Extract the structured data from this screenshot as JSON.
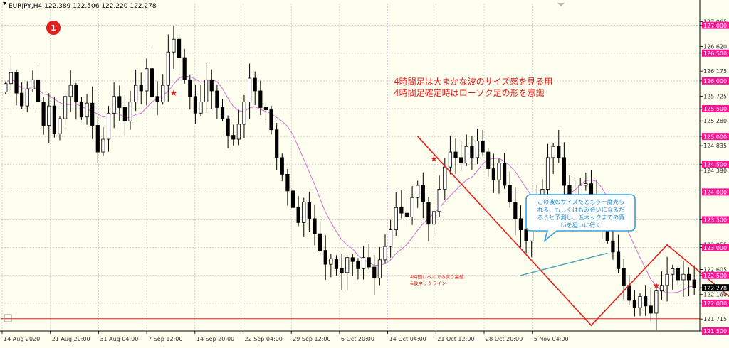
{
  "window": {
    "symbol_line": "EURJPY,H4  122.389 122.506 122.220 122.278",
    "marker_number": "1"
  },
  "colors": {
    "background": "#fffff0",
    "grid": "#c9b9c9",
    "candle": "#000000",
    "ma_line": "#d26ed2",
    "highlight_label": "#ff1493",
    "annotation_red": "#e0201c",
    "bubble_border": "#3aa0d8",
    "bubble_text": "#1b8bd2",
    "trend_line": "#4aa0b4"
  },
  "chart_data": {
    "type": "candlestick",
    "instrument": "EURJPY",
    "timeframe": "H4",
    "ylim": [
      121.5,
      127.2
    ],
    "x_tick_labels": [
      "14 Aug 2020",
      "21 Aug 20:00",
      "31 Aug 04:00",
      "7 Sep 12:00",
      "14 Sep 20:00",
      "22 Sep 04:00",
      "29 Sep 12:00",
      "6 Oct 20:00",
      "14 Oct 04:00",
      "21 Oct 12:00",
      "28 Oct 20:00",
      "5 Nov 04:00"
    ],
    "y_ticks": [
      {
        "value": 127.065,
        "label": "127.065",
        "highlight": false
      },
      {
        "value": 127.0,
        "label": "127.000",
        "highlight": true
      },
      {
        "value": 126.62,
        "label": "126.620",
        "highlight": false
      },
      {
        "value": 126.5,
        "label": "126.500",
        "highlight": true
      },
      {
        "value": 126.175,
        "label": "126.175",
        "highlight": false
      },
      {
        "value": 126.0,
        "label": "126.000",
        "highlight": true
      },
      {
        "value": 125.725,
        "label": "125.725",
        "highlight": false
      },
      {
        "value": 125.5,
        "label": "125.500",
        "highlight": true
      },
      {
        "value": 125.28,
        "label": "125.280",
        "highlight": false
      },
      {
        "value": 125.0,
        "label": "125.000",
        "highlight": true
      },
      {
        "value": 124.835,
        "label": "124.835",
        "highlight": false
      },
      {
        "value": 124.5,
        "label": "124.500",
        "highlight": true
      },
      {
        "value": 124.39,
        "label": "124.390",
        "highlight": false
      },
      {
        "value": 124.0,
        "label": "124.000",
        "highlight": true
      },
      {
        "value": 123.5,
        "label": "123.500",
        "highlight": true
      },
      {
        "value": 123.055,
        "label": "123.055",
        "highlight": false
      },
      {
        "value": 123.0,
        "label": "123.000",
        "highlight": true
      },
      {
        "value": 122.605,
        "label": "122.605",
        "highlight": false
      },
      {
        "value": 122.5,
        "label": "122.500",
        "highlight": true
      },
      {
        "value": 122.278,
        "label": "122.278",
        "highlight": false,
        "current": true
      },
      {
        "value": 122.16,
        "label": "122.160",
        "highlight": false
      },
      {
        "value": 122.0,
        "label": "122.000",
        "highlight": true
      },
      {
        "value": 121.715,
        "label": "121.715",
        "highlight": false
      },
      {
        "value": 121.5,
        "label": "121.500",
        "highlight": true
      }
    ],
    "closes": [
      125.95,
      126.15,
      125.78,
      125.55,
      125.85,
      126.02,
      125.62,
      125.2,
      125.55,
      125.05,
      125.32,
      125.72,
      125.92,
      125.62,
      125.35,
      125.6,
      125.2,
      124.72,
      124.95,
      125.42,
      125.72,
      125.52,
      125.28,
      125.62,
      125.92,
      125.82,
      126.22,
      125.72,
      125.62,
      125.92,
      126.52,
      126.75,
      126.42,
      126.02,
      125.72,
      125.42,
      125.62,
      126.02,
      125.82,
      125.52,
      125.32,
      125.02,
      124.95,
      125.22,
      125.62,
      126.05,
      125.82,
      125.52,
      125.48,
      125.12,
      124.62,
      124.32,
      124.02,
      123.72,
      123.45,
      123.82,
      123.52,
      123.25,
      122.95,
      122.7,
      122.8,
      122.62,
      122.55,
      122.82,
      122.75,
      122.62,
      122.82,
      122.65,
      122.45,
      122.78,
      123.02,
      123.32,
      123.72,
      123.62,
      123.55,
      123.9,
      124.12,
      123.82,
      123.42,
      123.65,
      124.05,
      124.45,
      124.72,
      124.62,
      124.52,
      124.82,
      124.62,
      124.92,
      124.72,
      124.42,
      124.22,
      124.52,
      124.12,
      123.82,
      123.52,
      123.32,
      123.12,
      123.42,
      123.82,
      124.05,
      124.62,
      124.82,
      124.62,
      124.12,
      123.92,
      123.82,
      124.12,
      124.15,
      123.92,
      123.82,
      123.42,
      123.12,
      122.92,
      122.62,
      122.32,
      122.05,
      121.92,
      122.12,
      121.95,
      121.82,
      122.22,
      122.32,
      122.52,
      122.62,
      122.42,
      122.52,
      122.42,
      122.278
    ],
    "markers": [
      {
        "type": "star",
        "index": 31,
        "price": 125.78
      },
      {
        "type": "star",
        "index": 79,
        "price": 124.6
      },
      {
        "type": "star",
        "index": 120,
        "price": 122.32
      }
    ],
    "horizontal_line": {
      "price": 121.72,
      "color": "#e0201c"
    },
    "wave_zigzag": [
      {
        "index": 76,
        "price": 125.0
      },
      {
        "index": 108,
        "price": 121.6
      },
      {
        "index": 122,
        "price": 123.05
      },
      {
        "index": 138,
        "price": 121.75
      }
    ],
    "trend_line": [
      {
        "index": 95,
        "price": 122.5
      },
      {
        "index": 111,
        "price": 122.9
      }
    ]
  },
  "annotations": {
    "note_line1": "4時間足は大まかな波のサイズ感を見る用",
    "note_line2": "4時間足確定時はローソク足の形を意識",
    "small_note_line1": "4時間レベルでの戻り高値",
    "small_note_line2": "&仮ネックライン",
    "bubble_lines": [
      "この波のサイズだともう一度売ら",
      "れる、もしくはもみ合いになるだ",
      "ろうと予測し、仮ネックまでの買",
      "いを狙いに行く"
    ]
  }
}
